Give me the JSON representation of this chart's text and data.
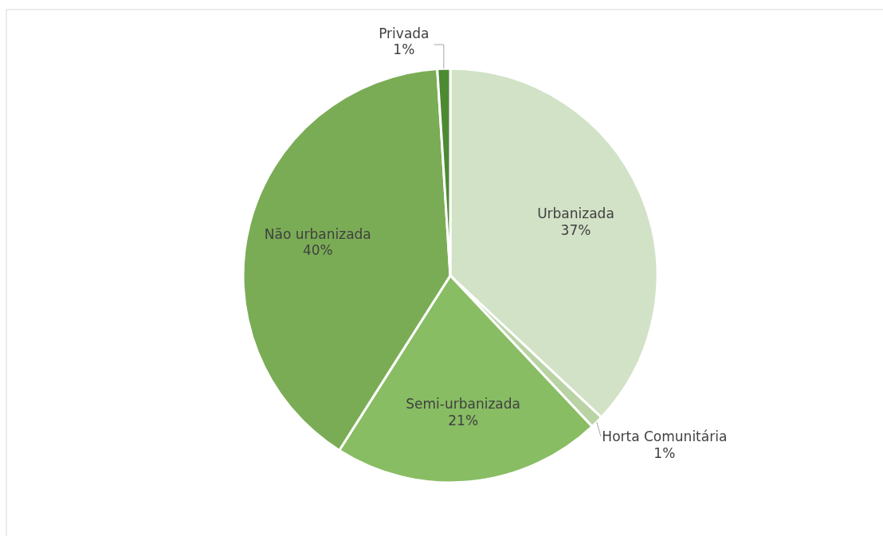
{
  "chart_data": {
    "type": "pie",
    "categories": [
      "Urbanizada",
      "Horta Comunitária",
      "Semi-urbanizada",
      "Não urbanizada",
      "Privada"
    ],
    "values": [
      37,
      1,
      21,
      40,
      1
    ],
    "colors": [
      "#d2e2c6",
      "#b9d3a5",
      "#88bd63",
      "#7aac55",
      "#4c8a32"
    ],
    "value_labels": [
      "37%",
      "1%",
      "21%",
      "40%",
      "1%"
    ],
    "legend": false
  }
}
